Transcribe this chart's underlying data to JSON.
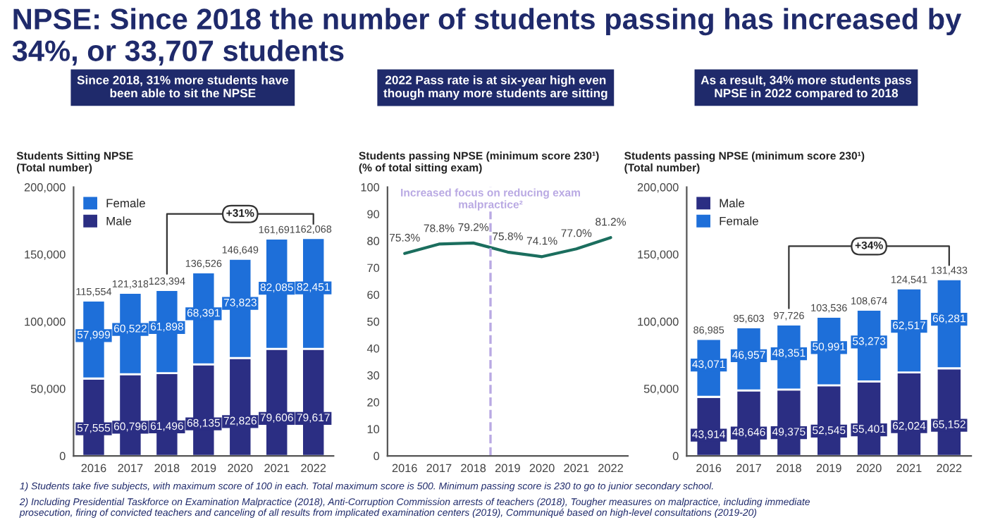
{
  "chart_data": [
    {
      "type": "bar",
      "stacked": true,
      "title": "NPSE: Since 2018 the number of students passing has increased by 34%, or 33,707 students",
      "subtitle": "Since 2018, 31% more students have\nbeen able to sit the NPSE",
      "ylabel": "Students Sitting NPSE\n(Total number)",
      "categories": [
        "2016",
        "2017",
        "2018",
        "2019",
        "2020",
        "2021",
        "2022"
      ],
      "series": [
        {
          "name": "Male",
          "color": "#2b2e83",
          "values": [
            57555,
            60796,
            61496,
            68135,
            72826,
            79606,
            79617
          ],
          "value_labels": [
            "57,555",
            "60,796",
            "61,496",
            "68,135",
            "72,826",
            "79,606",
            "79,617"
          ]
        },
        {
          "name": "Female",
          "color": "#1e6fd9",
          "values": [
            57999,
            60522,
            61898,
            68391,
            73823,
            82085,
            82451
          ],
          "value_labels": [
            "57,999",
            "60,522",
            "61,898",
            "68,391",
            "73,823",
            "82,085",
            "82,451"
          ]
        }
      ],
      "totals": [
        "115,554",
        "121,318",
        "123,394",
        "136,526",
        "146,649",
        "161,691",
        "162,068"
      ],
      "ylim": [
        0,
        200000
      ],
      "yticks": [
        0,
        {
          "value": 50000,
          "label": "50,000"
        },
        {
          "value": 100000,
          "label": "100,000"
        },
        {
          "value": 150000,
          "label": "150,000"
        },
        {
          "value": 200000,
          "label": "200,000"
        }
      ],
      "legend": "top left",
      "annotations": [
        {
          "text": "+31%",
          "x": "2022",
          "y": 162068
        },
        "1) Students take five subjects, with maximum score of 100 in each. Total maximum score is 500. Minimum passing score is 230 to go to junior secondary school.",
        "2) Including Presidential Taskforce on Examination Malpractice (2018), Anti-Corruption Commission arrests of teachers (2018), Tougher measures on malpractice, including immediate\nprosecution, firing of convicted teachers and canceling of all results from implicated examination centers (2019), Communiqué based on high-level consultations (2019-20)"
      ]
    },
    {
      "type": "line",
      "subtitle": "2022 Pass rate is at six-year high even\nthough many more students are sitting",
      "ylabel": "Students passing NPSE (minimum score 230¹)\n(% of total sitting exam)",
      "x": [
        2016,
        2017,
        2018,
        2019,
        2020,
        2021,
        2022
      ],
      "series": [
        {
          "color": "#1b6e5e",
          "values": [
            75.3,
            78.8,
            79.2,
            75.8,
            74.1,
            77.0,
            81.2
          ],
          "value_labels": [
            "75.3%",
            "78.8%",
            "79.2%",
            "75.8%",
            "74.1%",
            "77.0%",
            "81.2%"
          ]
        }
      ],
      "xlim": [
        2015.5,
        2022.5
      ],
      "xticks": [
        2016,
        2017,
        2018,
        2019,
        2020,
        2021,
        2022
      ],
      "ylim": [
        0,
        100
      ],
      "yticks": [
        0,
        10,
        20,
        30,
        40,
        50,
        60,
        70,
        80,
        90,
        100
      ],
      "marker": "none",
      "line_style": "solid",
      "ref_lines": [
        {
          "axis": "x",
          "value": 2018.5,
          "label": "Increased focus on reducing exam\nmalpractice²",
          "color": "#b9a9e3",
          "line_style": "dashed"
        }
      ]
    },
    {
      "type": "bar",
      "stacked": true,
      "subtitle": "As a result, 34% more students pass\nNPSE in 2022 compared to 2018",
      "ylabel": "Students passing NPSE (minimum score 230¹)\n(Total number)",
      "categories": [
        "2016",
        "2017",
        "2018",
        "2019",
        "2020",
        "2021",
        "2022"
      ],
      "series": [
        {
          "name": "Male",
          "color": "#2b2e83",
          "values": [
            43914,
            48646,
            49375,
            52545,
            55401,
            62024,
            65152
          ],
          "value_labels": [
            "43,914",
            "48,646",
            "49,375",
            "52,545",
            "55,401",
            "62,024",
            "65,152"
          ]
        },
        {
          "name": "Female",
          "color": "#1e6fd9",
          "values": [
            43071,
            46957,
            48351,
            50991,
            53273,
            62517,
            66281
          ],
          "value_labels": [
            "43,071",
            "46,957",
            "48,351",
            "50,991",
            "53,273",
            "62,517",
            "66,281"
          ]
        }
      ],
      "totals": [
        "86,985",
        "95,603",
        "97,726",
        "103,536",
        "108,674",
        "124,541",
        "131,433"
      ],
      "ylim": [
        0,
        200000
      ],
      "yticks": [
        0,
        {
          "value": 50000,
          "label": "50,000"
        },
        {
          "value": 100000,
          "label": "100,000"
        },
        {
          "value": 150000,
          "label": "150,000"
        },
        {
          "value": 200000,
          "label": "200,000"
        }
      ],
      "legend": "top left",
      "annotations": [
        {
          "text": "+34%",
          "x": "2022",
          "y": 131433
        }
      ]
    }
  ]
}
